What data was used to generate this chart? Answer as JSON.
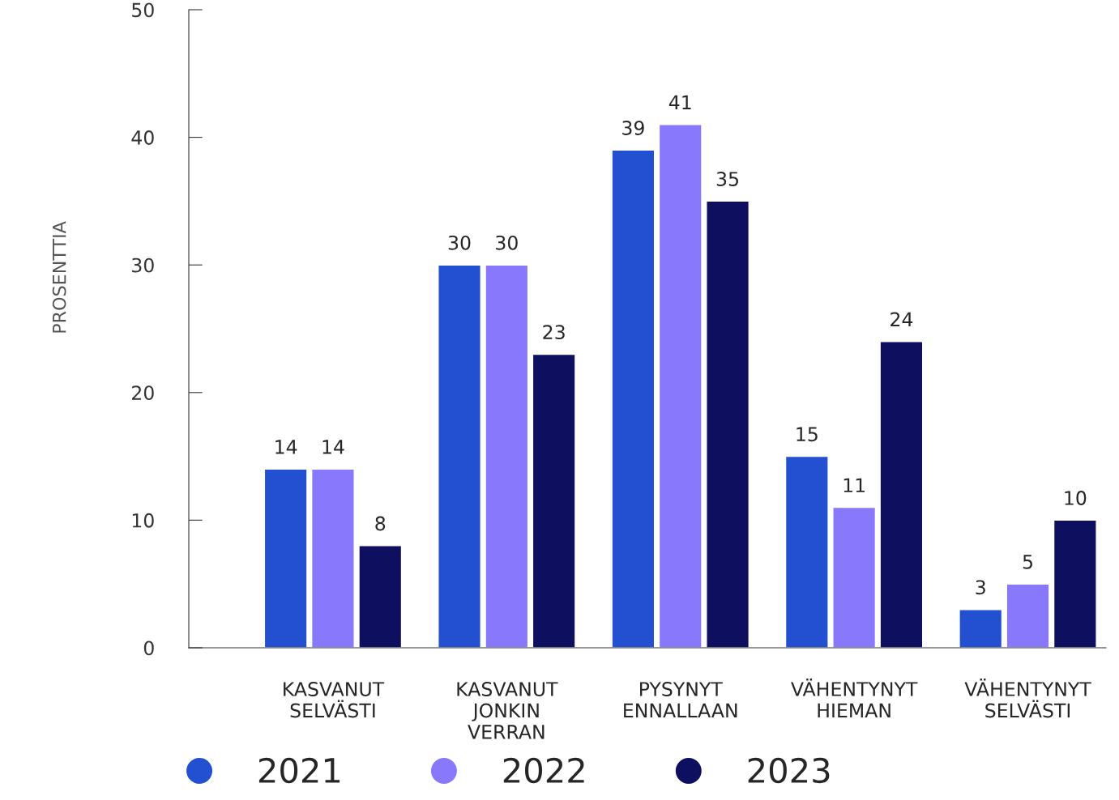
{
  "chart_data": {
    "type": "bar",
    "ylabel": "PROSENTTIA",
    "categories": [
      "KASVANUT\nSELVÄSTI",
      "KASVANUT\nJONKIN\nVERRAN",
      "PYSYNYT\nENNALLAAN",
      "VÄHENTYNYT\nHIEMAN",
      "VÄHENTYNYT\nSELVÄSTI"
    ],
    "series": [
      {
        "name": "2021",
        "color": "#2350d0",
        "values": [
          14,
          30,
          39,
          15,
          3
        ]
      },
      {
        "name": "2022",
        "color": "#8878fc",
        "values": [
          14,
          30,
          41,
          11,
          5
        ]
      },
      {
        "name": "2023",
        "color": "#0f0f5f",
        "values": [
          8,
          23,
          35,
          24,
          10
        ]
      }
    ],
    "ylim": [
      0,
      50
    ],
    "yticks": [
      0,
      10,
      20,
      30,
      40,
      50
    ],
    "data_labels": true,
    "grid": false,
    "legend": "bottom"
  }
}
